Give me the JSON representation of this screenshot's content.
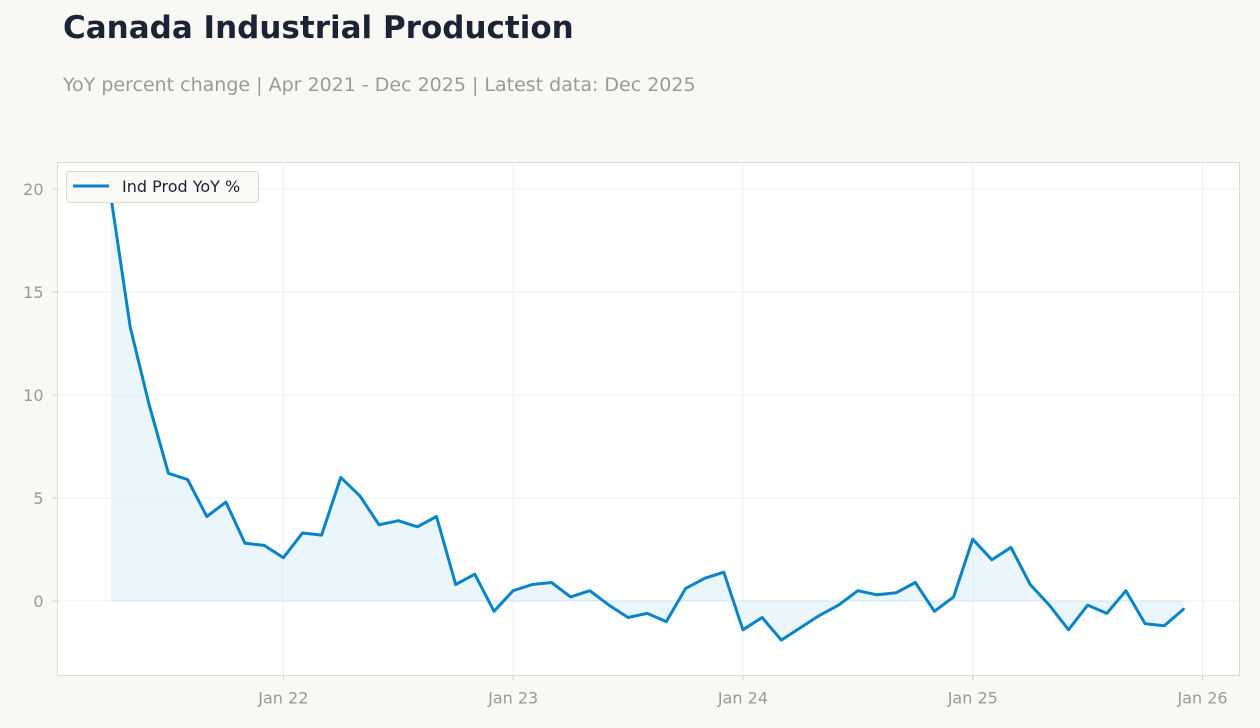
{
  "header": {
    "title": "Canada Industrial Production",
    "subtitle": "YoY percent change | Apr 2021 - Dec 2025 | Latest data: Dec 2025"
  },
  "colors": {
    "line": "#0a84c6",
    "fill": "#e3f1fb",
    "grid": "#efefef",
    "frame": "#dedbd5",
    "tick": "#999995"
  },
  "chart_data": {
    "type": "area",
    "title": "Canada Industrial Production",
    "subtitle": "YoY percent change | Apr 2021 - Dec 2025 | Latest data: Dec 2025",
    "xlabel": "",
    "ylabel": "",
    "ylim": [
      -3.6,
      21.3
    ],
    "y_ticks": [
      0,
      5,
      10,
      15,
      20
    ],
    "x_ticks": [
      "Jan 22",
      "Jan 23",
      "Jan 24",
      "Jan 25",
      "Jan 26"
    ],
    "grid": true,
    "legend": "top-left",
    "series": [
      {
        "name": "Ind Prod YoY %",
        "x": [
          "2021-04",
          "2021-05",
          "2021-06",
          "2021-07",
          "2021-08",
          "2021-09",
          "2021-10",
          "2021-11",
          "2021-12",
          "2022-01",
          "2022-02",
          "2022-03",
          "2022-04",
          "2022-05",
          "2022-06",
          "2022-07",
          "2022-08",
          "2022-09",
          "2022-10",
          "2022-11",
          "2022-12",
          "2023-01",
          "2023-02",
          "2023-03",
          "2023-04",
          "2023-05",
          "2023-06",
          "2023-07",
          "2023-08",
          "2023-09",
          "2023-10",
          "2023-11",
          "2023-12",
          "2024-01",
          "2024-02",
          "2024-03",
          "2024-04",
          "2024-05",
          "2024-06",
          "2024-07",
          "2024-08",
          "2024-09",
          "2024-10",
          "2024-11",
          "2024-12",
          "2025-01",
          "2025-02",
          "2025-03",
          "2025-04",
          "2025-05",
          "2025-06",
          "2025-07",
          "2025-08",
          "2025-09",
          "2025-10",
          "2025-11",
          "2025-12"
        ],
        "values": [
          19.6,
          13.3,
          9.5,
          6.2,
          5.9,
          4.1,
          4.8,
          2.8,
          2.7,
          2.1,
          3.3,
          3.2,
          6.0,
          5.1,
          3.7,
          3.9,
          3.6,
          4.1,
          0.8,
          1.3,
          -0.5,
          0.5,
          0.8,
          0.9,
          0.2,
          0.5,
          -0.2,
          -0.8,
          -0.6,
          -1.0,
          0.6,
          1.1,
          1.4,
          -1.4,
          -0.8,
          -1.9,
          -1.3,
          -0.7,
          -0.2,
          0.5,
          0.3,
          0.4,
          0.9,
          -0.5,
          0.2,
          3.0,
          2.0,
          2.6,
          0.8,
          -0.2,
          -1.4,
          -0.2,
          -0.6,
          0.5,
          -1.1,
          -1.2,
          -0.4
        ]
      }
    ]
  }
}
